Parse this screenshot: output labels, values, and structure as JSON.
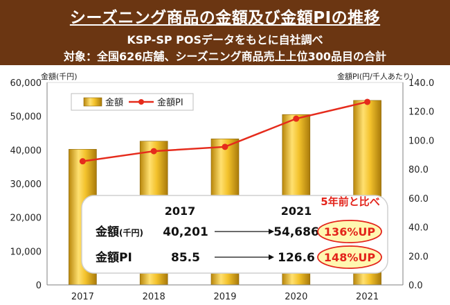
{
  "header": {
    "title": "シーズニング商品の金額及び金額PIの推移",
    "subtitle1": "KSP-SP POSデータをもとに自社調べ",
    "subtitle2": "対象：全国626店舗、シーズニング商品売上上位300品目の合計"
  },
  "chart_data": {
    "type": "bar",
    "categories": [
      "2017",
      "2018",
      "2019",
      "2020",
      "2021"
    ],
    "series": [
      {
        "name": "金額",
        "type": "bar",
        "axis": "left",
        "values": [
          40201,
          42600,
          43300,
          50500,
          54686
        ]
      },
      {
        "name": "金額PI",
        "type": "line",
        "axis": "right",
        "values": [
          85.5,
          92.5,
          95.5,
          115.0,
          126.6
        ]
      }
    ],
    "ylabel_left": "金額(千円)",
    "ylabel_right": "金額PI(円/千人あたり)",
    "ylim_left": [
      0,
      60000
    ],
    "ylim_right": [
      0,
      140
    ],
    "yticks_left": [
      "0",
      "10,000",
      "20,000",
      "30,000",
      "40,000",
      "50,000",
      "60,000"
    ],
    "yticks_right": [
      "0.0",
      "20.0",
      "40.0",
      "60.0",
      "80.0",
      "100.0",
      "120.0",
      "140.0"
    ],
    "legend_position": "top-left",
    "colors": {
      "bar": "#e6b81c",
      "line": "#e52b1c",
      "header": "#6b3612",
      "callout": "#e3231a"
    }
  },
  "summary": {
    "year_from": "2017",
    "year_to": "2021",
    "rows": [
      {
        "label": "金額",
        "unit": "(千円)",
        "from": "40,201",
        "to": "54,686",
        "change": "136%UP"
      },
      {
        "label": "金額PI",
        "unit": "",
        "from": "85.5",
        "to": "126.6",
        "change": "148%UP"
      }
    ],
    "compare_label": "5年前と比べ"
  }
}
